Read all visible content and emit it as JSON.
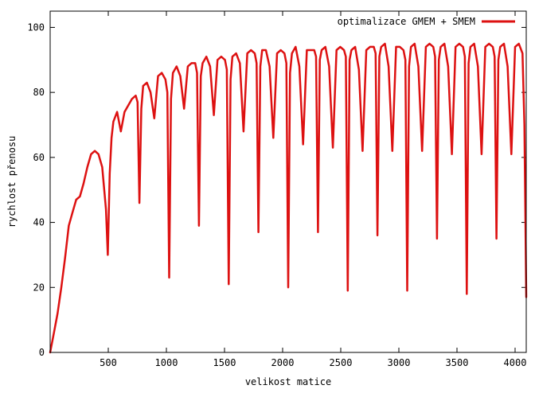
{
  "chart_data": {
    "type": "line",
    "title": "",
    "xlabel": "velikost matice",
    "ylabel": "rychlost přenosu",
    "xlim": [
      0,
      4096
    ],
    "ylim": [
      0,
      105
    ],
    "xticks": [
      500,
      1000,
      1500,
      2000,
      2500,
      3000,
      3500,
      4000
    ],
    "yticks": [
      0,
      20,
      40,
      60,
      80,
      100
    ],
    "grid": false,
    "legend_position": "top-right",
    "colors": {
      "series": "#dd1111",
      "frame": "#000000",
      "background": "#ffffff"
    },
    "series": [
      {
        "name": "optimalizace GMEM + SMEM",
        "x": [
          0,
          32,
          64,
          96,
          128,
          160,
          192,
          224,
          256,
          288,
          320,
          352,
          384,
          416,
          448,
          480,
          496,
          512,
          528,
          544,
          576,
          608,
          640,
          672,
          704,
          736,
          752,
          768,
          784,
          800,
          832,
          864,
          896,
          928,
          960,
          992,
          1008,
          1024,
          1040,
          1056,
          1088,
          1120,
          1152,
          1184,
          1216,
          1248,
          1264,
          1280,
          1296,
          1312,
          1344,
          1376,
          1408,
          1440,
          1472,
          1504,
          1520,
          1536,
          1552,
          1568,
          1600,
          1632,
          1664,
          1696,
          1728,
          1760,
          1776,
          1792,
          1808,
          1824,
          1856,
          1888,
          1920,
          1952,
          1984,
          2016,
          2032,
          2048,
          2064,
          2080,
          2112,
          2144,
          2176,
          2208,
          2240,
          2272,
          2288,
          2304,
          2320,
          2336,
          2368,
          2400,
          2432,
          2464,
          2496,
          2528,
          2544,
          2560,
          2576,
          2592,
          2624,
          2656,
          2688,
          2720,
          2752,
          2784,
          2800,
          2816,
          2832,
          2848,
          2880,
          2912,
          2944,
          2976,
          3008,
          3040,
          3056,
          3072,
          3088,
          3104,
          3136,
          3168,
          3200,
          3232,
          3264,
          3296,
          3312,
          3328,
          3344,
          3360,
          3392,
          3424,
          3456,
          3488,
          3520,
          3552,
          3568,
          3584,
          3600,
          3616,
          3648,
          3680,
          3712,
          3744,
          3776,
          3808,
          3824,
          3840,
          3856,
          3872,
          3904,
          3936,
          3968,
          4000,
          4032,
          4064,
          4080,
          4096
        ],
        "y": [
          0,
          6,
          12,
          20,
          29,
          39,
          43,
          47,
          48,
          52,
          57,
          61,
          62,
          61,
          57,
          44,
          30,
          55,
          66,
          71,
          74,
          68,
          74,
          76,
          78,
          79,
          77,
          46,
          75,
          82,
          83,
          80,
          72,
          85,
          86,
          84,
          80,
          23,
          78,
          86,
          88,
          85,
          75,
          88,
          89,
          89,
          86,
          39,
          85,
          89,
          91,
          88,
          73,
          90,
          91,
          90,
          87,
          21,
          84,
          91,
          92,
          89,
          68,
          92,
          93,
          92,
          89,
          37,
          88,
          93,
          93,
          88,
          66,
          92,
          93,
          92,
          89,
          20,
          86,
          92,
          94,
          88,
          64,
          93,
          93,
          93,
          91,
          37,
          90,
          93,
          94,
          88,
          63,
          93,
          94,
          93,
          91,
          19,
          90,
          93,
          94,
          87,
          62,
          93,
          94,
          94,
          92,
          36,
          91,
          94,
          95,
          88,
          62,
          94,
          94,
          93,
          90,
          19,
          88,
          94,
          95,
          88,
          62,
          94,
          95,
          94,
          91,
          35,
          90,
          94,
          95,
          88,
          61,
          94,
          95,
          94,
          91,
          18,
          89,
          94,
          95,
          88,
          61,
          94,
          95,
          94,
          91,
          35,
          90,
          94,
          95,
          88,
          61,
          94,
          95,
          92,
          70,
          17
        ]
      }
    ]
  }
}
